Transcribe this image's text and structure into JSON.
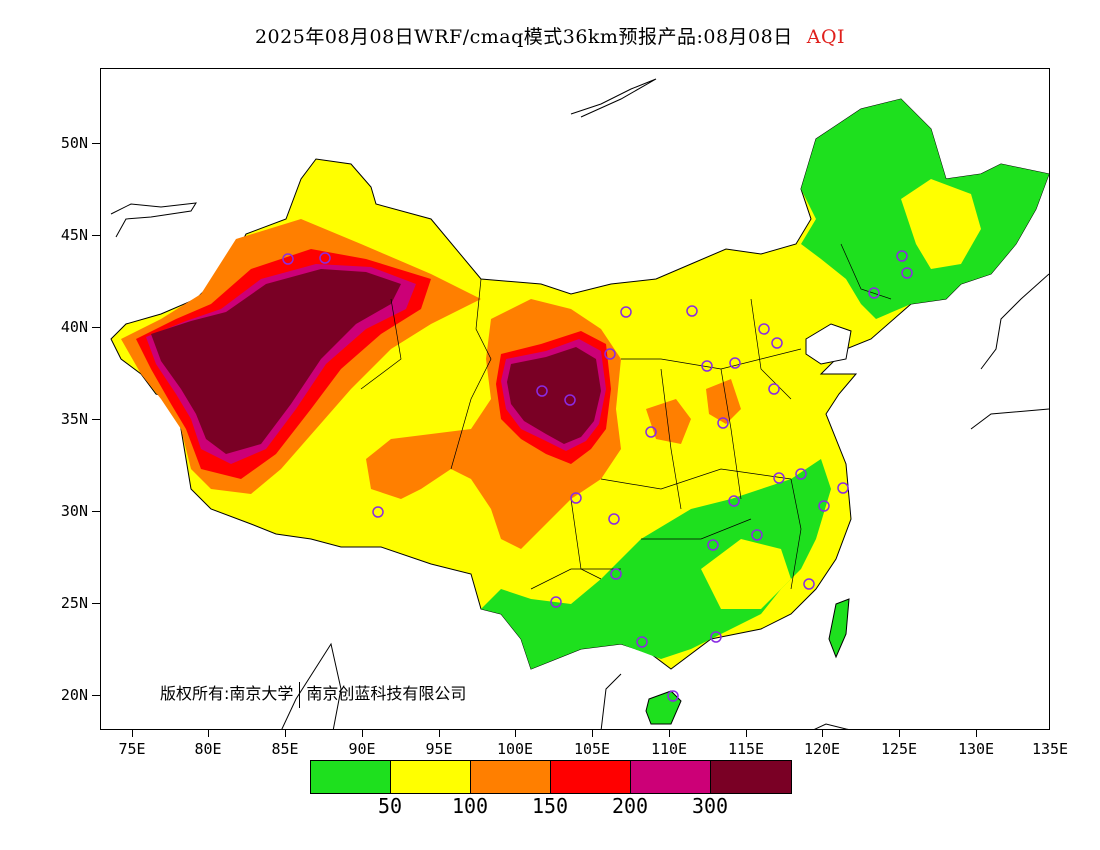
{
  "title": {
    "main": "2025年08月08日WRF/cmaq模式36km预报产品:08月08日",
    "variable": "AQI"
  },
  "axes": {
    "y_ticks": [
      "50N",
      "45N",
      "40N",
      "35N",
      "30N",
      "25N",
      "20N"
    ],
    "x_ticks": [
      "75E",
      "80E",
      "85E",
      "90E",
      "95E",
      "100E",
      "105E",
      "110E",
      "115E",
      "120E",
      "125E",
      "130E",
      "135E"
    ]
  },
  "copyright": {
    "part1": "版权所有:南京大学",
    "part2": "南京创蓝科技有限公司"
  },
  "legend": {
    "colors": [
      "#1ee01e",
      "#ffff00",
      "#ff7f00",
      "#ff0000",
      "#cc0077",
      "#7a0025"
    ],
    "labels": [
      "50",
      "100",
      "150",
      "200",
      "300"
    ]
  },
  "map_colors": {
    "good": "#1ee01e",
    "moderate": "#ffff00",
    "sensitive": "#ff7f00",
    "unhealthy": "#ff0000",
    "very_unhealthy": "#cc0077",
    "hazardous": "#7a0025",
    "station_marker": "#8a2be2"
  }
}
